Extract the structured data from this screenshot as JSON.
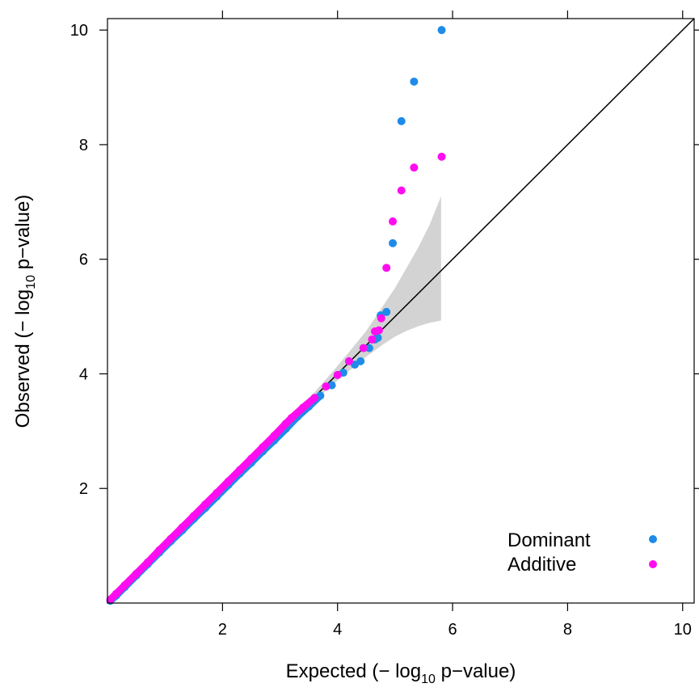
{
  "chart_data": {
    "type": "scatter",
    "title": "",
    "xlabel": "Expected (−log10 p−value)",
    "ylabel": "Observed (−log10 p−value)",
    "xlabel_parts": {
      "pre": "Expected (− log",
      "sub": "10",
      "post": " p−value)"
    },
    "ylabel_parts": {
      "pre": "Observed (− log",
      "sub": "10",
      "post": " p−value)"
    },
    "xlim": [
      0,
      10.2
    ],
    "ylim": [
      0,
      10.2
    ],
    "xticks": [
      2,
      4,
      6,
      8,
      10
    ],
    "yticks": [
      2,
      4,
      6,
      8,
      10
    ],
    "grid": false,
    "legend_position": "bottom-right",
    "reference_line": {
      "from": [
        0,
        0
      ],
      "to": [
        10.2,
        10.2
      ],
      "color": "#000000"
    },
    "confidence_band": {
      "color": "#d3d3d3",
      "x": [
        3.3,
        3.6,
        3.9,
        4.2,
        4.5,
        4.8,
        5.0,
        5.2,
        5.4,
        5.6,
        5.8
      ],
      "lower": [
        3.25,
        3.52,
        3.8,
        4.05,
        4.3,
        4.52,
        4.65,
        4.75,
        4.83,
        4.89,
        4.93
      ],
      "upper": [
        3.35,
        3.68,
        4.02,
        4.38,
        4.75,
        5.2,
        5.5,
        5.85,
        6.2,
        6.6,
        7.1
      ]
    },
    "series": [
      {
        "name": "Dominant",
        "color": "#1e8be8",
        "values": [
          [
            0.05,
            0.04
          ],
          [
            0.15,
            0.13
          ],
          [
            0.3,
            0.28
          ],
          [
            0.5,
            0.48
          ],
          [
            0.7,
            0.68
          ],
          [
            0.9,
            0.88
          ],
          [
            1.1,
            1.08
          ],
          [
            1.3,
            1.27
          ],
          [
            1.5,
            1.47
          ],
          [
            1.7,
            1.66
          ],
          [
            1.9,
            1.86
          ],
          [
            2.1,
            2.06
          ],
          [
            2.3,
            2.26
          ],
          [
            2.5,
            2.45
          ],
          [
            2.7,
            2.65
          ],
          [
            2.9,
            2.84
          ],
          [
            3.1,
            3.04
          ],
          [
            3.3,
            3.25
          ],
          [
            3.5,
            3.43
          ],
          [
            3.7,
            3.62
          ],
          [
            3.9,
            3.8
          ],
          [
            4.1,
            4.02
          ],
          [
            4.3,
            4.16
          ],
          [
            4.4,
            4.22
          ],
          [
            4.55,
            4.45
          ],
          [
            4.65,
            4.6
          ],
          [
            4.7,
            4.63
          ],
          [
            4.75,
            5.02
          ],
          [
            4.85,
            5.08
          ],
          [
            4.96,
            6.28
          ],
          [
            5.11,
            8.41
          ],
          [
            5.33,
            9.1
          ],
          [
            5.81,
            10.0
          ]
        ]
      },
      {
        "name": "Additive",
        "color": "#ff0df0",
        "values": [
          [
            0.05,
            0.06
          ],
          [
            0.15,
            0.16
          ],
          [
            0.3,
            0.31
          ],
          [
            0.5,
            0.51
          ],
          [
            0.7,
            0.71
          ],
          [
            0.9,
            0.92
          ],
          [
            1.1,
            1.12
          ],
          [
            1.3,
            1.32
          ],
          [
            1.5,
            1.52
          ],
          [
            1.7,
            1.72
          ],
          [
            1.9,
            1.92
          ],
          [
            2.1,
            2.12
          ],
          [
            2.3,
            2.32
          ],
          [
            2.5,
            2.52
          ],
          [
            2.7,
            2.72
          ],
          [
            2.9,
            2.92
          ],
          [
            3.1,
            3.13
          ],
          [
            3.2,
            3.23
          ],
          [
            3.4,
            3.41
          ],
          [
            3.6,
            3.58
          ],
          [
            3.8,
            3.78
          ],
          [
            4.0,
            3.98
          ],
          [
            4.2,
            4.22
          ],
          [
            4.45,
            4.45
          ],
          [
            4.6,
            4.6
          ],
          [
            4.65,
            4.74
          ],
          [
            4.72,
            4.76
          ],
          [
            4.76,
            4.97
          ],
          [
            4.85,
            5.85
          ],
          [
            4.96,
            6.66
          ],
          [
            5.11,
            7.2
          ],
          [
            5.33,
            7.6
          ],
          [
            5.81,
            7.79
          ]
        ]
      }
    ]
  }
}
